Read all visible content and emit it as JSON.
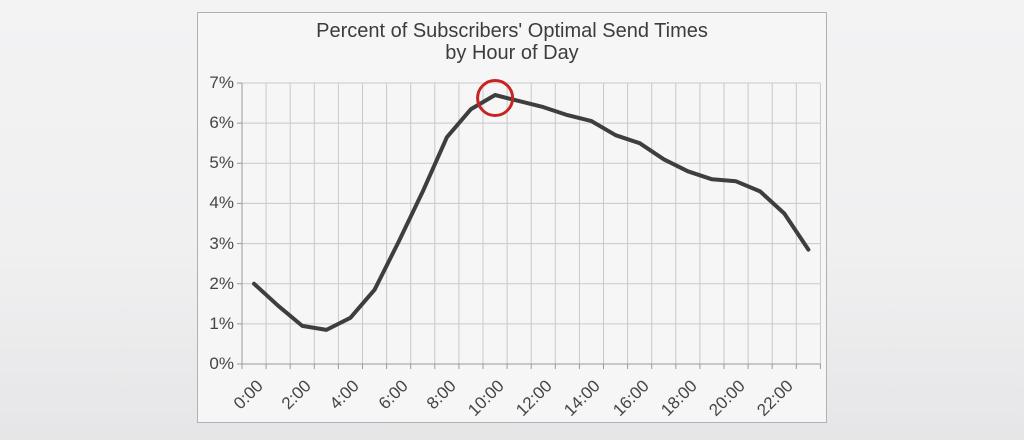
{
  "chart_data": {
    "type": "line",
    "title": "Percent of Subscribers' Optimal Send Times",
    "subtitle": "by Hour of Day",
    "categories": [
      "0:00",
      "1:00",
      "2:00",
      "3:00",
      "4:00",
      "5:00",
      "6:00",
      "7:00",
      "8:00",
      "9:00",
      "10:00",
      "11:00",
      "12:00",
      "13:00",
      "14:00",
      "15:00",
      "16:00",
      "17:00",
      "18:00",
      "19:00",
      "20:00",
      "21:00",
      "22:00",
      "23:00"
    ],
    "values": [
      2.0,
      1.45,
      0.95,
      0.85,
      1.15,
      1.85,
      3.05,
      4.3,
      5.65,
      6.35,
      6.7,
      6.55,
      6.4,
      6.2,
      6.05,
      5.7,
      5.5,
      5.1,
      4.8,
      4.6,
      4.55,
      4.3,
      3.75,
      2.85
    ],
    "x_tick_labels": [
      "0:00",
      "2:00",
      "4:00",
      "6:00",
      "8:00",
      "10:00",
      "12:00",
      "14:00",
      "16:00",
      "18:00",
      "20:00",
      "22:00"
    ],
    "y_tick_labels": [
      "0%",
      "1%",
      "2%",
      "3%",
      "4%",
      "5%",
      "6%",
      "7%"
    ],
    "ylim": [
      0,
      7
    ],
    "grid": true,
    "legend": false,
    "annotation": {
      "type": "circle",
      "category": "10:00",
      "value": 6.7,
      "color": "#c72323"
    },
    "colors": {
      "line": "#3e3e3e",
      "grid": "#c9c9c9",
      "axis": "#9a9a9a",
      "title": "#3c3c3c",
      "labels": "#454545",
      "frame_border": "#b0b0b0",
      "chart_bg": "#f6f6f6",
      "page_bg_top": "#f3f3f4",
      "page_bg_bottom": "#e6e6e8"
    }
  }
}
